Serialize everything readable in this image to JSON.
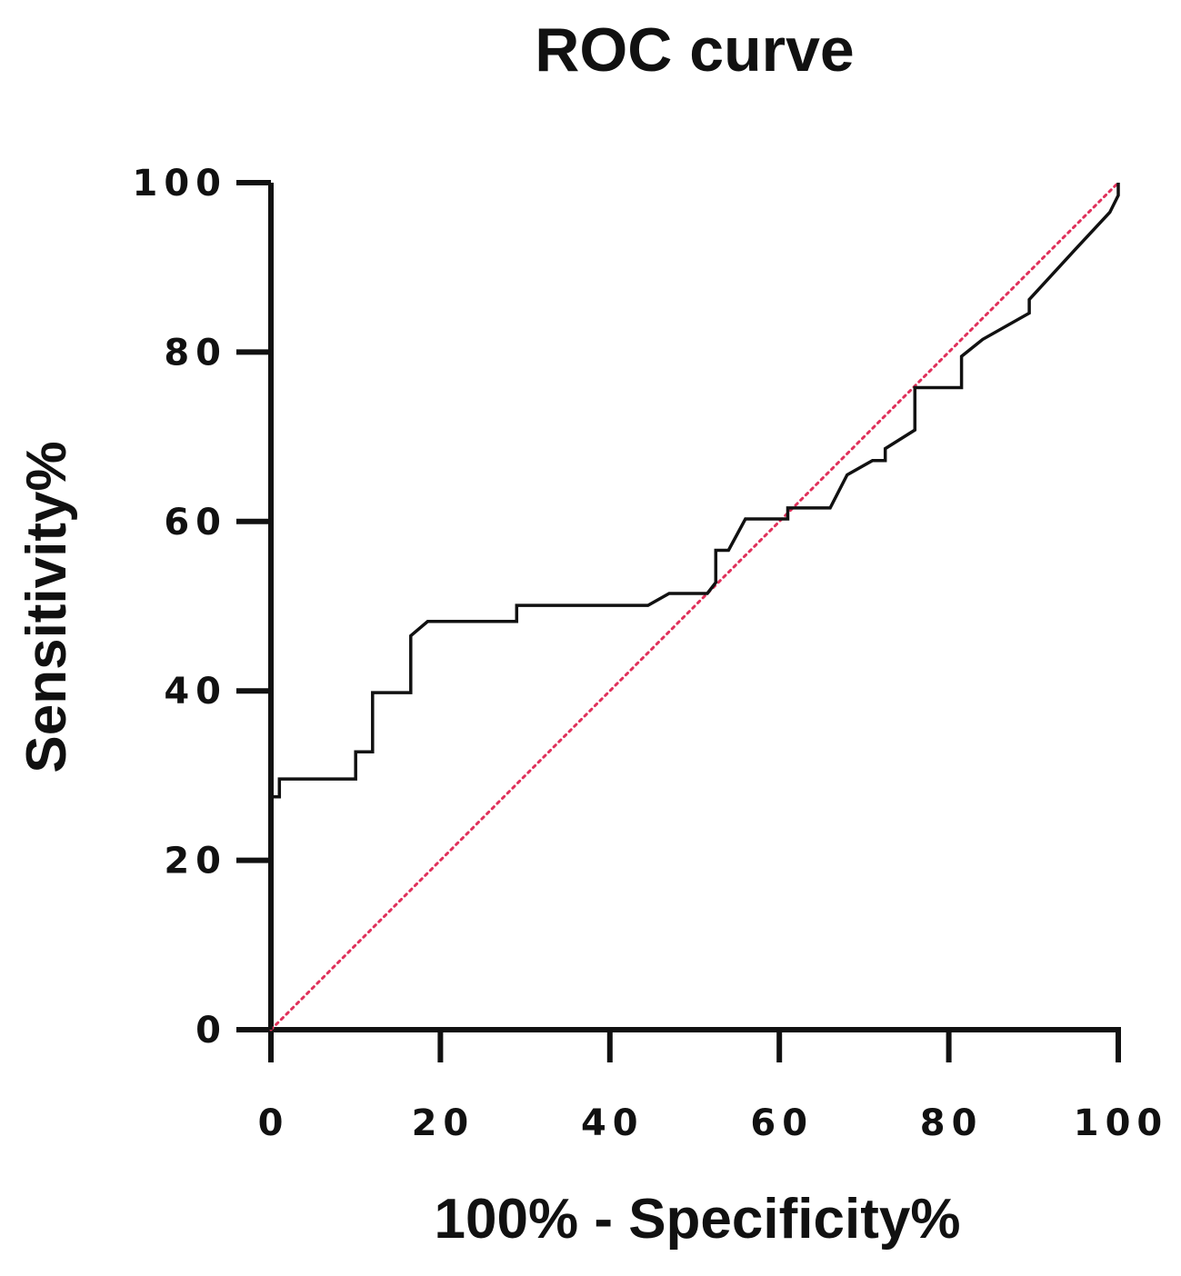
{
  "chart_data": {
    "type": "line",
    "title": "ROC curve",
    "xlabel": "100% - Specificity%",
    "ylabel": "Sensitivity%",
    "xlim": [
      0,
      100
    ],
    "ylim": [
      0,
      100
    ],
    "x_ticks": [
      "0",
      "20",
      "40",
      "60",
      "80",
      "100"
    ],
    "y_ticks": [
      "0",
      "20",
      "40",
      "60",
      "80",
      "100"
    ],
    "grid": false,
    "legend": "none",
    "series": [
      {
        "color": "#111111",
        "style": "solid",
        "points": [
          [
            0,
            0
          ],
          [
            0,
            27.5
          ],
          [
            1,
            27.5
          ],
          [
            1,
            29.6
          ],
          [
            10,
            29.6
          ],
          [
            10,
            32.8
          ],
          [
            12,
            32.8
          ],
          [
            12,
            39.8
          ],
          [
            16.5,
            39.8
          ],
          [
            16.5,
            46.5
          ],
          [
            18.5,
            48.2
          ],
          [
            29,
            48.2
          ],
          [
            29,
            50.1
          ],
          [
            44.5,
            50.1
          ],
          [
            47,
            51.5
          ],
          [
            51.5,
            51.5
          ],
          [
            52.5,
            52.8
          ],
          [
            52.5,
            56.6
          ],
          [
            54,
            56.6
          ],
          [
            56,
            60.3
          ],
          [
            61,
            60.3
          ],
          [
            61,
            61.6
          ],
          [
            66,
            61.6
          ],
          [
            68,
            65.5
          ],
          [
            71,
            67.2
          ],
          [
            72.5,
            67.2
          ],
          [
            72.5,
            68.6
          ],
          [
            76,
            70.8
          ],
          [
            76,
            75.8
          ],
          [
            81.5,
            75.8
          ],
          [
            81.5,
            79.5
          ],
          [
            84,
            81.5
          ],
          [
            89.5,
            84.6
          ],
          [
            89.5,
            86.2
          ],
          [
            95,
            92.2
          ],
          [
            99,
            96.5
          ],
          [
            100,
            98.5
          ],
          [
            100,
            100
          ]
        ]
      },
      {
        "color": "#e0305a",
        "style": "dotted",
        "points": [
          [
            0,
            0
          ],
          [
            100,
            100
          ]
        ]
      }
    ]
  }
}
